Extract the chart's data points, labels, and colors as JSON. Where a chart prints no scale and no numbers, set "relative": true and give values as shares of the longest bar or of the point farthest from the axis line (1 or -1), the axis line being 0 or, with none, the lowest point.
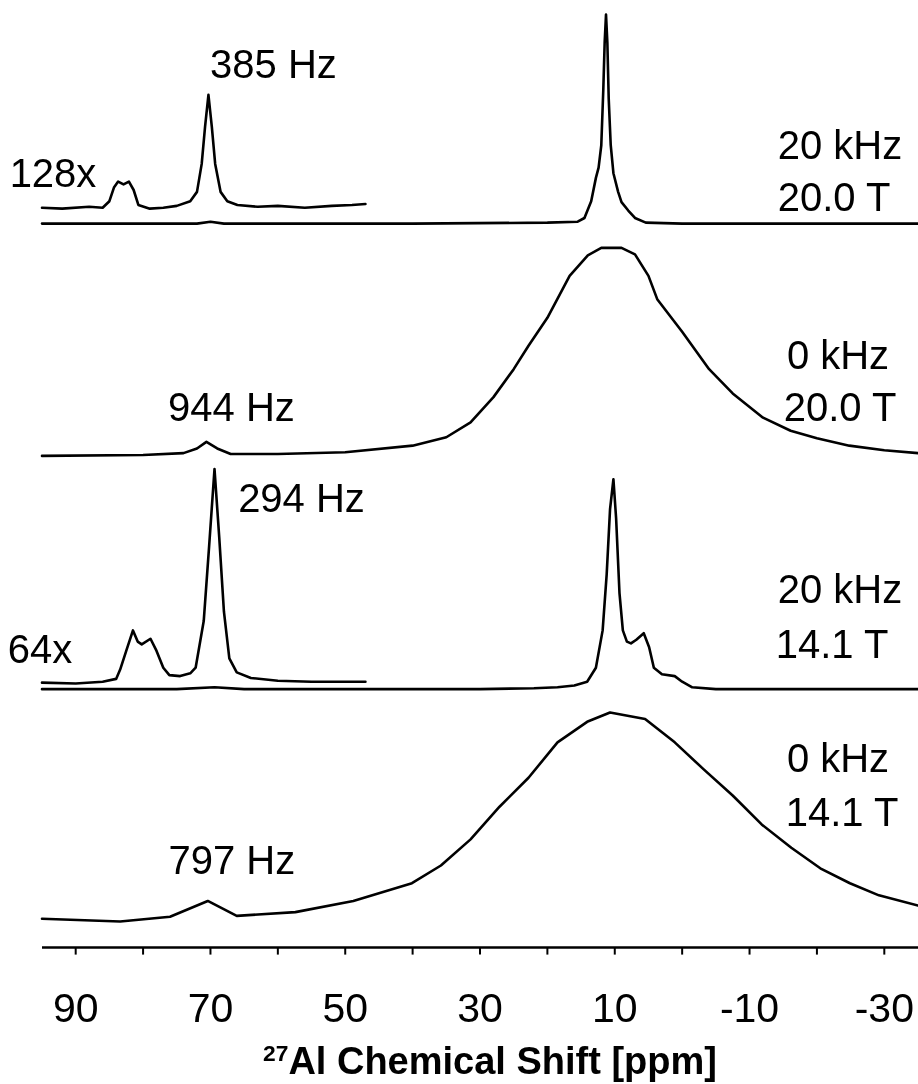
{
  "chart_data": {
    "type": "line",
    "relative": true,
    "xlabel": "$^{27}$Al Chemical Shift [ppm]",
    "xlim": [
      95,
      -35
    ],
    "xticks": [
      90,
      {
        "value": 80,
        "label": null
      },
      70,
      {
        "value": 60,
        "label": null
      },
      50,
      {
        "value": 40,
        "label": null
      },
      30,
      {
        "value": 20,
        "label": null
      },
      10,
      {
        "value": 0,
        "label": null
      },
      -10,
      {
        "value": -20,
        "label": null
      },
      -30
    ],
    "series": [
      {
        "color": "#000000",
        "x": [
          95,
          80,
          72,
          70,
          68,
          40,
          20,
          15.5,
          14.5,
          13.5,
          12.8,
          12.4,
          12.0,
          11.7,
          11.5,
          11.3,
          11.1,
          10.9,
          10.6,
          10.2,
          9.5,
          9.0,
          8,
          7,
          5.4,
          0,
          -35
        ],
        "values": [
          0.776,
          0.776,
          0.776,
          0.778,
          0.776,
          0.776,
          0.777,
          0.778,
          0.782,
          0.8,
          0.825,
          0.836,
          0.86,
          0.92,
          0.97,
          1.0,
          0.97,
          0.91,
          0.86,
          0.83,
          0.81,
          0.799,
          0.79,
          0.782,
          0.777,
          0.776,
          0.776
        ]
      },
      {
        "color": "#000000",
        "x": [
          95,
          92,
          88,
          86,
          85,
          84.3,
          83.7,
          82.9,
          82.1,
          81.4,
          80.7,
          79,
          77,
          75,
          73,
          72,
          71.3,
          70.8,
          70.3,
          69.8,
          69.3,
          68.5,
          67.5,
          66,
          63,
          60,
          56,
          52,
          49,
          47
        ],
        "values": [
          0.793,
          0.792,
          0.794,
          0.793,
          0.8,
          0.815,
          0.821,
          0.818,
          0.821,
          0.812,
          0.796,
          0.792,
          0.793,
          0.795,
          0.8,
          0.81,
          0.84,
          0.88,
          0.914,
          0.88,
          0.84,
          0.81,
          0.8,
          0.796,
          0.794,
          0.795,
          0.793,
          0.795,
          0.796,
          0.797
        ]
      },
      {
        "color": "#000000",
        "x": [
          95,
          80,
          74,
          72,
          70.6,
          69,
          67,
          60,
          50,
          40,
          35,
          31.4,
          28,
          25,
          22.8,
          20,
          16.7,
          14,
          12,
          9,
          7,
          5,
          3.7,
          0,
          -4,
          -7.5,
          -12,
          -16.1,
          -20,
          -24.8,
          -30,
          -35
        ],
        "values": [
          0.527,
          0.528,
          0.53,
          0.535,
          0.542,
          0.535,
          0.529,
          0.529,
          0.531,
          0.538,
          0.547,
          0.563,
          0.59,
          0.62,
          0.645,
          0.675,
          0.72,
          0.742,
          0.75,
          0.75,
          0.743,
          0.72,
          0.695,
          0.66,
          0.62,
          0.594,
          0.568,
          0.554,
          0.546,
          0.538,
          0.533,
          0.53
        ]
      },
      {
        "color": "#000000",
        "x": [
          95,
          75,
          69.4,
          65,
          30,
          22,
          18.5,
          16,
          14.1,
          12.8,
          11.8,
          11.2,
          10.7,
          10.2,
          9.8,
          9.3,
          8.8,
          8.2,
          7.6,
          6.8,
          5.7,
          4.9,
          4.2,
          3,
          1.1,
          0,
          -1.5,
          -5,
          -35
        ],
        "values": [
          0.277,
          0.277,
          0.279,
          0.277,
          0.277,
          0.278,
          0.279,
          0.281,
          0.285,
          0.3,
          0.34,
          0.4,
          0.47,
          0.502,
          0.46,
          0.38,
          0.34,
          0.328,
          0.326,
          0.33,
          0.337,
          0.322,
          0.3,
          0.293,
          0.291,
          0.285,
          0.279,
          0.277,
          0.277
        ]
      },
      {
        "color": "#000000",
        "x": [
          95,
          90,
          86,
          84,
          83.4,
          82.5,
          81.5,
          80.8,
          80.2,
          78.9,
          78,
          77,
          76.1,
          74.5,
          73,
          72.2,
          71,
          70.2,
          69.4,
          68.7,
          68,
          67.2,
          66.1,
          64,
          60,
          55,
          50,
          47
        ],
        "values": [
          0.284,
          0.283,
          0.285,
          0.288,
          0.298,
          0.318,
          0.34,
          0.328,
          0.325,
          0.331,
          0.318,
          0.3,
          0.292,
          0.291,
          0.294,
          0.3,
          0.35,
          0.43,
          0.513,
          0.44,
          0.36,
          0.31,
          0.295,
          0.289,
          0.286,
          0.285,
          0.285,
          0.285
        ]
      },
      {
        "color": "#000000",
        "x": [
          95,
          83.4,
          76,
          70.4,
          66.1,
          57.4,
          48.8,
          40.1,
          35.8,
          31.4,
          27.1,
          22.8,
          18.5,
          14.1,
          10.7,
          5.5,
          1.1,
          -3.2,
          -7.5,
          -11.8,
          -16.2,
          -20.5,
          -24.9,
          -29.2,
          -35
        ],
        "values": [
          0.031,
          0.028,
          0.033,
          0.05,
          0.034,
          0.038,
          0.05,
          0.069,
          0.088,
          0.116,
          0.151,
          0.182,
          0.22,
          0.242,
          0.252,
          0.245,
          0.22,
          0.191,
          0.163,
          0.132,
          0.107,
          0.085,
          0.069,
          0.056,
          0.045
        ]
      }
    ],
    "annotations": [
      "128x",
      {
        "text": "385 Hz",
        "x": 70.3,
        "y": 0.914
      },
      "20 kHz",
      "20.0 T",
      {
        "text": "944 Hz",
        "x": 70.6,
        "y": 0.542
      },
      "0 kHz",
      "20.0 T",
      "64x",
      {
        "text": "294 Hz",
        "x": 69.4,
        "y": 0.513
      },
      "20 kHz",
      "14.1 T",
      {
        "text": "797 Hz",
        "x": 70.4,
        "y": 0.05
      },
      "0 kHz",
      "14.1 T"
    ]
  }
}
